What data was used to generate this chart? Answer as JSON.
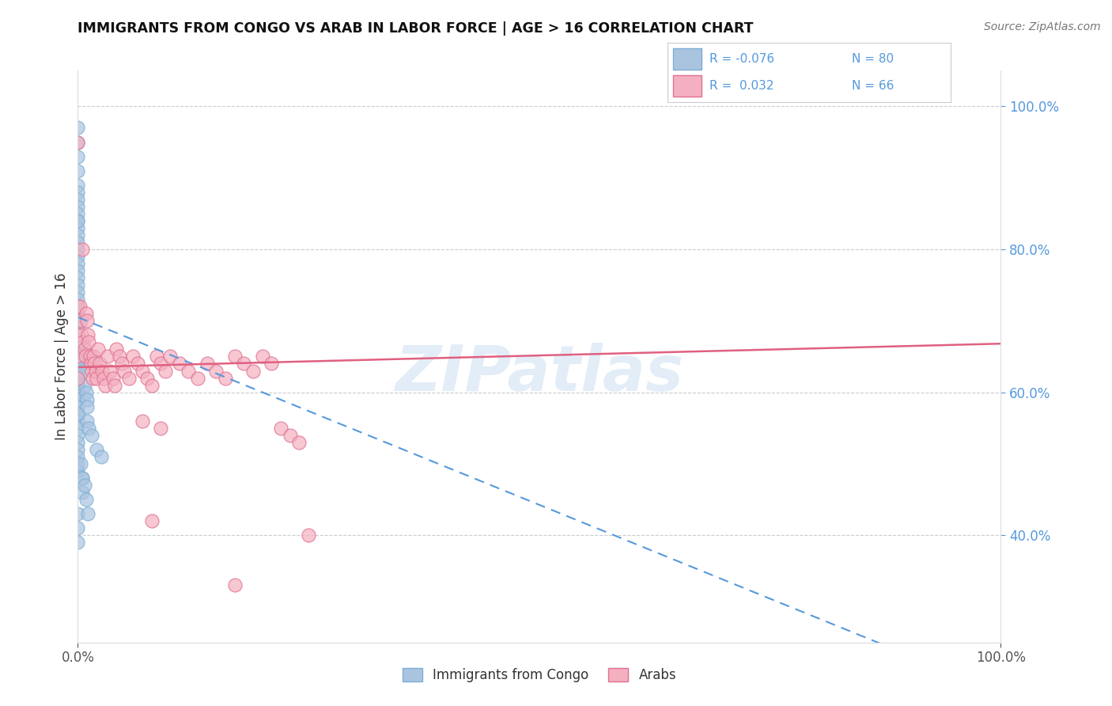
{
  "title": "IMMIGRANTS FROM CONGO VS ARAB IN LABOR FORCE | AGE > 16 CORRELATION CHART",
  "source": "Source: ZipAtlas.com",
  "ylabel": "In Labor Force | Age > 16",
  "xlim": [
    0.0,
    1.0
  ],
  "ylim": [
    0.25,
    1.05
  ],
  "congo_color": "#aac4e0",
  "congo_color_edge": "#7aaed6",
  "arab_color": "#f4b0c0",
  "arab_color_edge": "#e07090",
  "congo_R": -0.076,
  "congo_N": 80,
  "arab_R": 0.032,
  "arab_N": 66,
  "watermark": "ZIPatlas",
  "congo_line_start_y": 0.705,
  "congo_line_end_y": 0.18,
  "arab_line_start_y": 0.635,
  "arab_line_end_y": 0.668,
  "congo_x": [
    0.0,
    0.0,
    0.0,
    0.0,
    0.0,
    0.0,
    0.0,
    0.0,
    0.0,
    0.0,
    0.0,
    0.0,
    0.0,
    0.0,
    0.0,
    0.0,
    0.0,
    0.0,
    0.0,
    0.0,
    0.0,
    0.0,
    0.0,
    0.0,
    0.0,
    0.0,
    0.0,
    0.0,
    0.0,
    0.0,
    0.0,
    0.0,
    0.0,
    0.0,
    0.0,
    0.0,
    0.0,
    0.0,
    0.0,
    0.0,
    0.0,
    0.0,
    0.0,
    0.0,
    0.0,
    0.0,
    0.0,
    0.0,
    0.0,
    0.0,
    0.0,
    0.0,
    0.0,
    0.0,
    0.0,
    0.003,
    0.004,
    0.005,
    0.006,
    0.007,
    0.009,
    0.01,
    0.01,
    0.01,
    0.012,
    0.015,
    0.02,
    0.025,
    0.005,
    0.005,
    0.0,
    0.0,
    0.0,
    0.003,
    0.005,
    0.007,
    0.009,
    0.011,
    0.0,
    0.0
  ],
  "congo_y": [
    0.97,
    0.95,
    0.93,
    0.91,
    0.89,
    0.88,
    0.87,
    0.86,
    0.85,
    0.84,
    0.83,
    0.82,
    0.81,
    0.8,
    0.79,
    0.78,
    0.77,
    0.76,
    0.75,
    0.74,
    0.73,
    0.72,
    0.71,
    0.7,
    0.69,
    0.68,
    0.68,
    0.67,
    0.67,
    0.66,
    0.66,
    0.65,
    0.65,
    0.64,
    0.64,
    0.63,
    0.63,
    0.62,
    0.62,
    0.61,
    0.61,
    0.6,
    0.6,
    0.59,
    0.59,
    0.58,
    0.57,
    0.56,
    0.55,
    0.54,
    0.53,
    0.52,
    0.51,
    0.5,
    0.49,
    0.67,
    0.65,
    0.64,
    0.63,
    0.61,
    0.6,
    0.59,
    0.58,
    0.56,
    0.55,
    0.54,
    0.52,
    0.51,
    0.48,
    0.46,
    0.43,
    0.41,
    0.39,
    0.5,
    0.48,
    0.47,
    0.45,
    0.43,
    0.84,
    0.57
  ],
  "arab_x": [
    0.0,
    0.0,
    0.0,
    0.0,
    0.0,
    0.002,
    0.003,
    0.004,
    0.005,
    0.006,
    0.007,
    0.008,
    0.009,
    0.01,
    0.011,
    0.012,
    0.013,
    0.014,
    0.015,
    0.016,
    0.017,
    0.018,
    0.019,
    0.02,
    0.022,
    0.024,
    0.026,
    0.028,
    0.03,
    0.032,
    0.035,
    0.038,
    0.04,
    0.042,
    0.045,
    0.048,
    0.05,
    0.055,
    0.06,
    0.065,
    0.07,
    0.075,
    0.08,
    0.085,
    0.09,
    0.095,
    0.1,
    0.11,
    0.12,
    0.13,
    0.14,
    0.15,
    0.16,
    0.17,
    0.18,
    0.19,
    0.2,
    0.21,
    0.22,
    0.23,
    0.24,
    0.25,
    0.17,
    0.07,
    0.08,
    0.09
  ],
  "arab_y": [
    0.95,
    0.72,
    0.68,
    0.65,
    0.62,
    0.72,
    0.7,
    0.68,
    0.8,
    0.67,
    0.66,
    0.65,
    0.71,
    0.7,
    0.68,
    0.67,
    0.65,
    0.64,
    0.63,
    0.62,
    0.65,
    0.64,
    0.63,
    0.62,
    0.66,
    0.64,
    0.63,
    0.62,
    0.61,
    0.65,
    0.63,
    0.62,
    0.61,
    0.66,
    0.65,
    0.64,
    0.63,
    0.62,
    0.65,
    0.64,
    0.63,
    0.62,
    0.61,
    0.65,
    0.64,
    0.63,
    0.65,
    0.64,
    0.63,
    0.62,
    0.64,
    0.63,
    0.62,
    0.65,
    0.64,
    0.63,
    0.65,
    0.64,
    0.55,
    0.54,
    0.53,
    0.4,
    0.33,
    0.56,
    0.42,
    0.55
  ]
}
